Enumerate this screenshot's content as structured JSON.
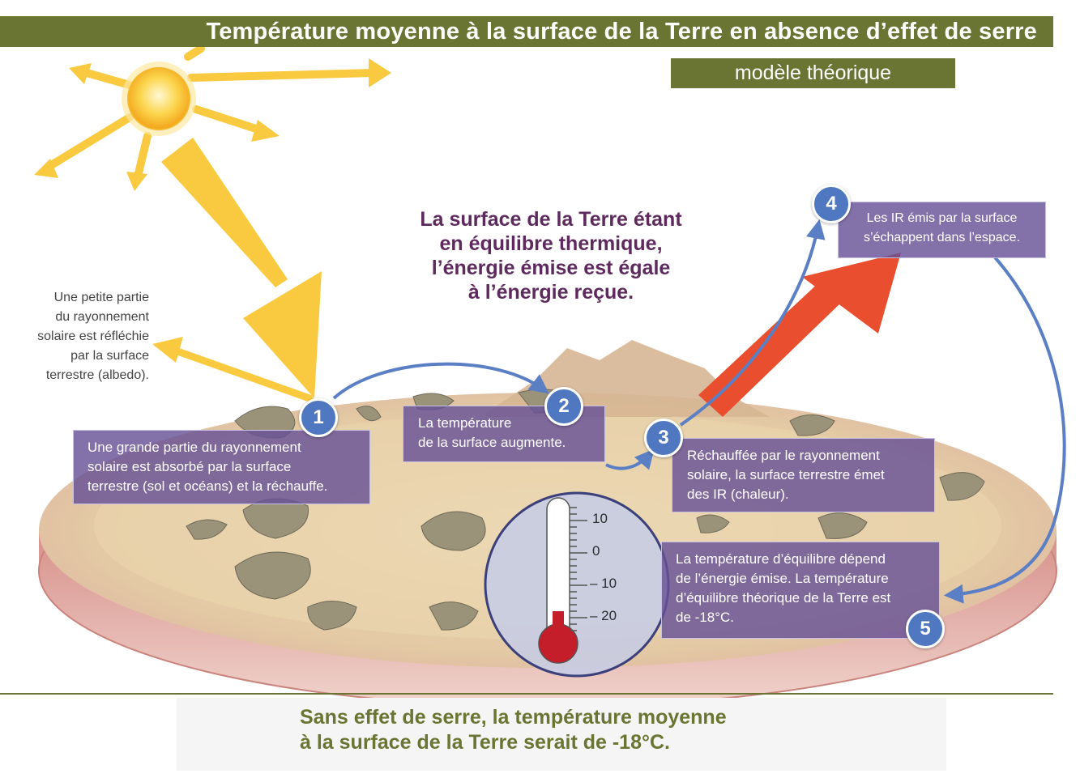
{
  "header": {
    "title": "Température moyenne à la surface de la Terre en absence d’effet de serre",
    "subtitle": "modèle théorique"
  },
  "center_message": {
    "lines": [
      "La surface de la Terre étant",
      "en équilibre thermique,",
      "l’énergie émise est égale",
      "à l’énergie reçue."
    ]
  },
  "albedo_note": {
    "lines": [
      "Une petite partie",
      "du rayonnement",
      "solaire est réfléchie",
      "par la surface",
      "terrestre (albedo)."
    ]
  },
  "steps": [
    {
      "number": "1",
      "lines": [
        "Une grande partie du rayonnement",
        "solaire est absorbé par la surface",
        "terrestre (sol et océans) et la réchauffe."
      ]
    },
    {
      "number": "2",
      "lines": [
        "La température",
        "de la surface augmente."
      ]
    },
    {
      "number": "3",
      "lines": [
        "Réchauffée par le rayonnement",
        "solaire, la surface terrestre émet",
        "des IR (chaleur)."
      ]
    },
    {
      "number": "4",
      "lines": [
        "Les IR émis par la surface",
        "s’échappent dans l’espace."
      ]
    },
    {
      "number": "5",
      "lines": [
        "La température d’équilibre dépend",
        "de l’énergie émise. La température",
        "d’équilibre théorique de la Terre est",
        "de -18°C."
      ]
    }
  ],
  "thermometer": {
    "scale_labels": [
      "10",
      "0",
      "– 10",
      "– 20"
    ],
    "reading_celsius": -18,
    "liquid_color": "#c41e2a"
  },
  "conclusion": {
    "lines": [
      "Sans effet de serre, la température moyenne",
      "à la surface de la Terre serait de -18°C."
    ]
  },
  "colors": {
    "header_band": "#6b7533",
    "sun_rays": "#f9c93f",
    "infrared_arrow": "#e94e2e",
    "flow_arrows": "#5b7fc4",
    "text_boxes": "#685296",
    "center_text": "#5e2a5e",
    "conclusion_text": "#6b7533"
  },
  "icons": {
    "sun": "sun-icon",
    "thermometer": "thermometer-icon"
  }
}
